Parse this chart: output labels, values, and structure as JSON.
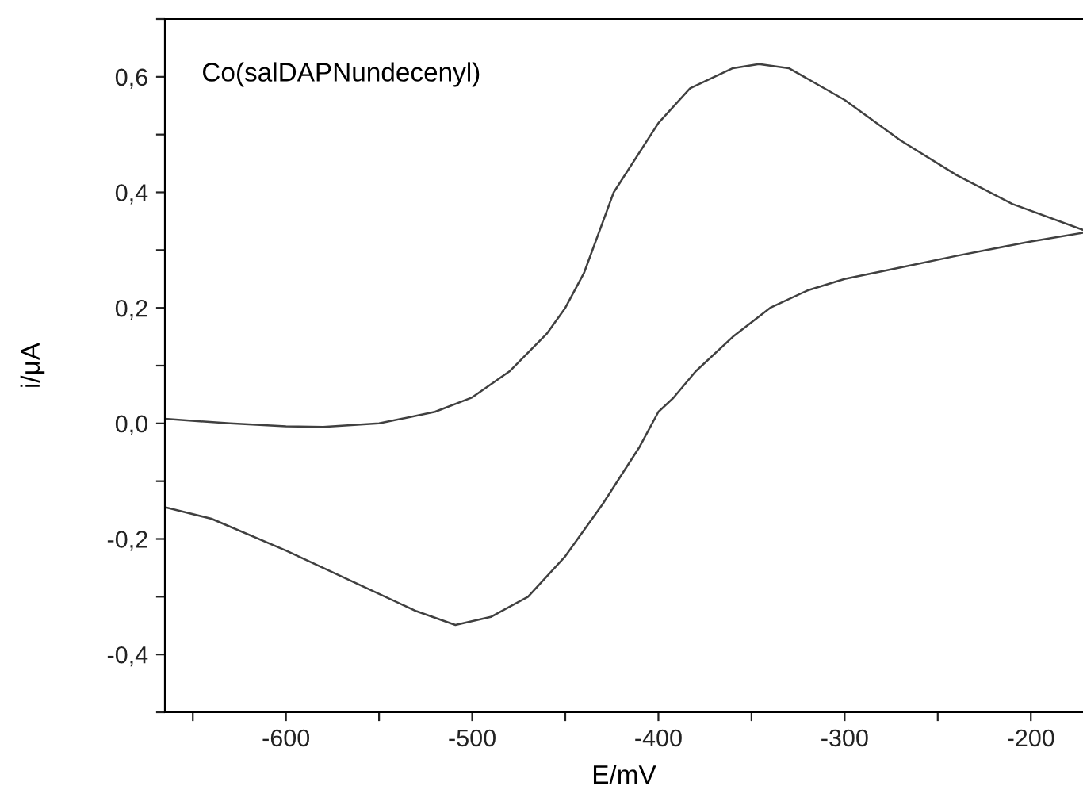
{
  "chart_data": {
    "type": "line",
    "xlabel": "E/mV",
    "ylabel": "i/μA",
    "annotations": [
      "Co(salDAPNundecenyl)"
    ],
    "series": [
      {
        "color": "#404040",
        "x": [
          -665,
          -630,
          -600,
          -580,
          -550,
          -520,
          -500,
          -480,
          -460,
          -450,
          -440,
          -424,
          -400,
          -383,
          -360,
          -346,
          -330,
          -300,
          -270,
          -240,
          -210,
          -172
        ],
        "values": [
          0.008,
          0.0,
          -0.005,
          -0.006,
          0.0,
          0.02,
          0.045,
          0.09,
          0.155,
          0.2,
          0.26,
          0.4,
          0.52,
          0.58,
          0.615,
          0.622,
          0.615,
          0.56,
          0.49,
          0.43,
          0.38,
          0.335
        ]
      },
      {
        "color": "#404040",
        "x": [
          -665,
          -640,
          -600,
          -560,
          -530,
          -509,
          -490,
          -470,
          -450,
          -430,
          -410,
          -400,
          -392,
          -380,
          -360,
          -340,
          -320,
          -300,
          -270,
          -240,
          -200,
          -172
        ],
        "values": [
          -0.145,
          -0.165,
          -0.22,
          -0.28,
          -0.325,
          -0.349,
          -0.335,
          -0.3,
          -0.23,
          -0.14,
          -0.04,
          0.02,
          0.044,
          0.09,
          0.15,
          0.2,
          0.23,
          0.25,
          0.27,
          0.29,
          0.315,
          0.33
        ]
      }
    ],
    "xlim": [
      -665,
      -172
    ],
    "ylim": [
      -0.5,
      0.7
    ],
    "xticks": [
      {
        "value": -650,
        "label": null
      },
      {
        "value": -600,
        "label": "-600"
      },
      {
        "value": -550,
        "label": null
      },
      {
        "value": -500,
        "label": "-500"
      },
      {
        "value": -450,
        "label": null
      },
      {
        "value": -400,
        "label": "-400"
      },
      {
        "value": -350,
        "label": null
      },
      {
        "value": -300,
        "label": "-300"
      },
      {
        "value": -250,
        "label": null
      },
      {
        "value": -200,
        "label": "-200"
      }
    ],
    "yticks": [
      {
        "value": -0.5,
        "label": null
      },
      {
        "value": -0.4,
        "label": "-0,4"
      },
      {
        "value": -0.3,
        "label": null
      },
      {
        "value": -0.2,
        "label": "-0,2"
      },
      {
        "value": -0.1,
        "label": null
      },
      {
        "value": 0.0,
        "label": "0,0"
      },
      {
        "value": 0.1,
        "label": null
      },
      {
        "value": 0.2,
        "label": "0,2"
      },
      {
        "value": 0.3,
        "label": null
      },
      {
        "value": 0.4,
        "label": "0,4"
      },
      {
        "value": 0.5,
        "label": null
      },
      {
        "value": 0.6,
        "label": "0,6"
      },
      {
        "value": 0.7,
        "label": null
      }
    ],
    "grid": false,
    "legend": false,
    "marker": "none",
    "line_style": "solid"
  }
}
